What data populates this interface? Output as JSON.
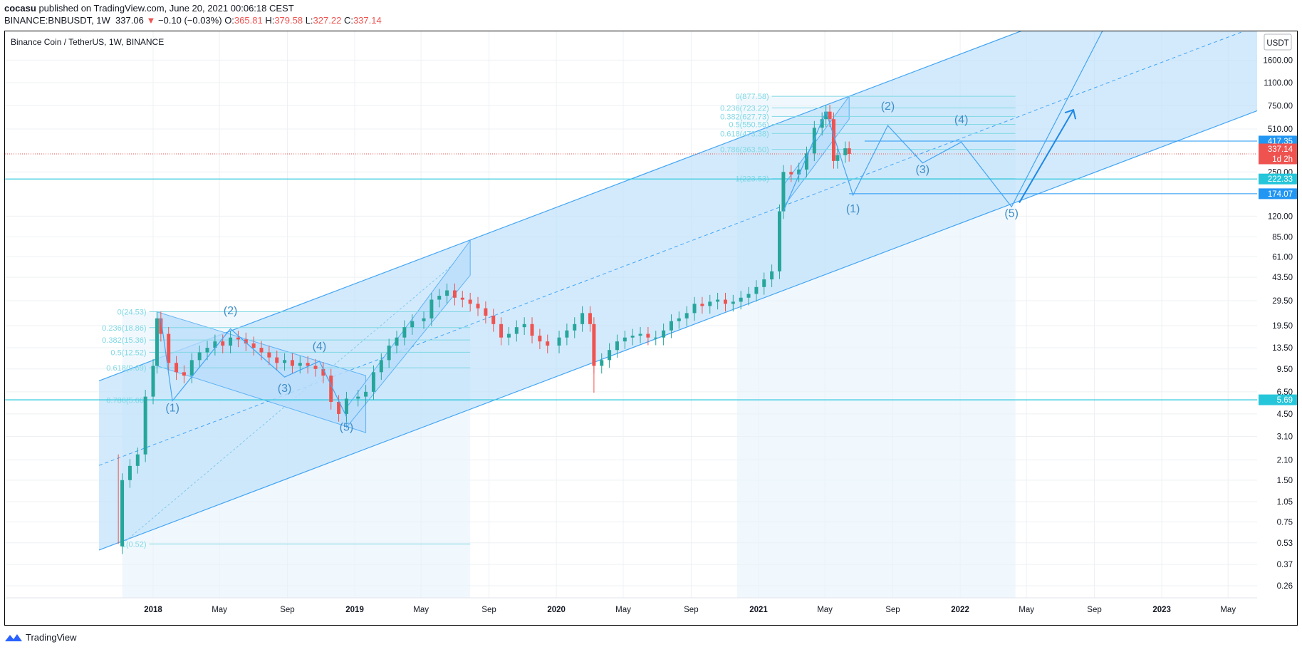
{
  "header": {
    "author": "cocasu",
    "published_text": "published on TradingView.com, June 20, 2021 00:06:18 CEST",
    "symbol": "BINANCE:BNBUSDT, 1W",
    "price": "337.06",
    "arrow": "▼",
    "change": "−0.10 (−0.03%)",
    "o_label": "O:",
    "o_value": "365.81",
    "h_label": "H:",
    "h_value": "379.58",
    "l_label": "L:",
    "l_value": "327.22",
    "c_label": "C:",
    "c_value": "337.14"
  },
  "chart_title": "Binance Coin / TetherUS, 1W, BINANCE",
  "footer": {
    "brand": "TradingView"
  },
  "colors": {
    "up": "#26a69a",
    "down": "#ef5350",
    "channel_fill": "#bbdefb",
    "channel_line": "#42a5f5",
    "fib": "#7fd8e4",
    "wave_label": "#3f8ec8",
    "hline": "#26c6da"
  },
  "chart_data": {
    "type": "candlestick",
    "title": "Binance Coin / TetherUS, 1W, BINANCE",
    "y_scale": "log",
    "y_unit": "USDT",
    "y_ticks": [
      0.26,
      0.37,
      0.53,
      0.75,
      1.05,
      1.5,
      2.1,
      3.1,
      4.5,
      6.5,
      9.5,
      13.5,
      19.5,
      29.5,
      43.5,
      61.0,
      85.0,
      120.0,
      250.0,
      510.0,
      750.0,
      1100.0,
      1600.0
    ],
    "y_tick_labels": [
      "0.26",
      "0.37",
      "0.53",
      "0.75",
      "1.05",
      "1.50",
      "2.10",
      "3.10",
      "4.50",
      "6.50",
      "9.50",
      "13.50",
      "19.50",
      "29.50",
      "43.50",
      "61.00",
      "85.00",
      "120.00",
      "250.00",
      "510.00",
      "750.00",
      "1100.00",
      "1600.00"
    ],
    "x_ticks": [
      {
        "label": "2018",
        "date": "2018-01-01",
        "bold": true
      },
      {
        "label": "May",
        "date": "2018-05-01"
      },
      {
        "label": "Sep",
        "date": "2018-09-01"
      },
      {
        "label": "2019",
        "date": "2019-01-01",
        "bold": true
      },
      {
        "label": "May",
        "date": "2019-05-01"
      },
      {
        "label": "Sep",
        "date": "2019-09-01"
      },
      {
        "label": "2020",
        "date": "2020-01-01",
        "bold": true
      },
      {
        "label": "May",
        "date": "2020-05-01"
      },
      {
        "label": "Sep",
        "date": "2020-09-01"
      },
      {
        "label": "2021",
        "date": "2021-01-01",
        "bold": true
      },
      {
        "label": "May",
        "date": "2021-05-01"
      },
      {
        "label": "Sep",
        "date": "2021-09-01"
      },
      {
        "label": "2022",
        "date": "2022-01-01",
        "bold": true
      },
      {
        "label": "May",
        "date": "2022-05-01"
      },
      {
        "label": "Sep",
        "date": "2022-09-01"
      },
      {
        "label": "2023",
        "date": "2023-01-01",
        "bold": true
      },
      {
        "label": "May",
        "date": "2023-05-01"
      }
    ],
    "price_points": [
      [
        "2017-10-30",
        0.5
      ],
      [
        "2017-11-06",
        1.5
      ],
      [
        "2017-11-20",
        1.9
      ],
      [
        "2017-12-04",
        2.3
      ],
      [
        "2017-12-18",
        6.0
      ],
      [
        "2018-01-01",
        10.0
      ],
      [
        "2018-01-08",
        22.0
      ],
      [
        "2018-01-15",
        17.0
      ],
      [
        "2018-01-29",
        10.5
      ],
      [
        "2018-02-12",
        9.0
      ],
      [
        "2018-02-26",
        8.5
      ],
      [
        "2018-03-12",
        11.0
      ],
      [
        "2018-03-26",
        12.5
      ],
      [
        "2018-04-09",
        13.5
      ],
      [
        "2018-04-23",
        15.0
      ],
      [
        "2018-05-07",
        14.0
      ],
      [
        "2018-05-21",
        16.0
      ],
      [
        "2018-06-04",
        15.5
      ],
      [
        "2018-06-18",
        14.5
      ],
      [
        "2018-07-02",
        13.5
      ],
      [
        "2018-07-16",
        12.5
      ],
      [
        "2018-07-30",
        11.5
      ],
      [
        "2018-08-13",
        10.5
      ],
      [
        "2018-08-27",
        11.0
      ],
      [
        "2018-09-10",
        10.0
      ],
      [
        "2018-09-24",
        10.5
      ],
      [
        "2018-10-08",
        10.0
      ],
      [
        "2018-10-22",
        9.5
      ],
      [
        "2018-11-05",
        8.5
      ],
      [
        "2018-11-19",
        5.5
      ],
      [
        "2018-12-03",
        4.5
      ],
      [
        "2018-12-17",
        5.8
      ],
      [
        "2019-01-07",
        6.0
      ],
      [
        "2019-01-21",
        6.5
      ],
      [
        "2019-02-04",
        9.0
      ],
      [
        "2019-02-18",
        11.0
      ],
      [
        "2019-03-04",
        14.0
      ],
      [
        "2019-03-18",
        16.0
      ],
      [
        "2019-04-01",
        19.0
      ],
      [
        "2019-04-15",
        21.0
      ],
      [
        "2019-05-06",
        22.0
      ],
      [
        "2019-05-20",
        30.0
      ],
      [
        "2019-06-03",
        32.0
      ],
      [
        "2019-06-17",
        35.0
      ],
      [
        "2019-07-01",
        31.0
      ],
      [
        "2019-07-15",
        30.0
      ],
      [
        "2019-07-29",
        28.0
      ],
      [
        "2019-08-12",
        26.0
      ],
      [
        "2019-08-26",
        23.0
      ],
      [
        "2019-09-09",
        20.0
      ],
      [
        "2019-09-23",
        16.0
      ],
      [
        "2019-10-07",
        17.0
      ],
      [
        "2019-10-21",
        19.0
      ],
      [
        "2019-11-04",
        20.0
      ],
      [
        "2019-11-18",
        16.5
      ],
      [
        "2019-12-02",
        15.0
      ],
      [
        "2019-12-16",
        14.0
      ],
      [
        "2020-01-06",
        16.0
      ],
      [
        "2020-01-20",
        18.0
      ],
      [
        "2020-02-03",
        20.0
      ],
      [
        "2020-02-17",
        24.0
      ],
      [
        "2020-03-02",
        20.0
      ],
      [
        "2020-03-09",
        10.0
      ],
      [
        "2020-03-23",
        11.0
      ],
      [
        "2020-04-06",
        13.0
      ],
      [
        "2020-04-20",
        15.0
      ],
      [
        "2020-05-04",
        16.0
      ],
      [
        "2020-05-18",
        16.5
      ],
      [
        "2020-06-01",
        17.0
      ],
      [
        "2020-06-15",
        16.0
      ],
      [
        "2020-06-29",
        16.0
      ],
      [
        "2020-07-13",
        18.0
      ],
      [
        "2020-07-27",
        21.0
      ],
      [
        "2020-08-10",
        22.0
      ],
      [
        "2020-08-24",
        24.0
      ],
      [
        "2020-09-07",
        28.0
      ],
      [
        "2020-09-21",
        27.0
      ],
      [
        "2020-10-05",
        29.0
      ],
      [
        "2020-10-19",
        30.0
      ],
      [
        "2020-11-02",
        28.0
      ],
      [
        "2020-11-16",
        29.0
      ],
      [
        "2020-11-30",
        31.0
      ],
      [
        "2020-12-14",
        33.0
      ],
      [
        "2020-12-28",
        37.0
      ],
      [
        "2021-01-11",
        42.0
      ],
      [
        "2021-01-25",
        48.0
      ],
      [
        "2021-02-08",
        130.0
      ],
      [
        "2021-02-15",
        250.0
      ],
      [
        "2021-03-01",
        240.0
      ],
      [
        "2021-03-15",
        260.0
      ],
      [
        "2021-03-29",
        340.0
      ],
      [
        "2021-04-12",
        520.0
      ],
      [
        "2021-04-26",
        600.0
      ],
      [
        "2021-05-03",
        680.0
      ],
      [
        "2021-05-10",
        600.0
      ],
      [
        "2021-05-17",
        300.0
      ],
      [
        "2021-05-24",
        330.0
      ],
      [
        "2021-06-07",
        370.0
      ],
      [
        "2021-06-14",
        337.14
      ]
    ],
    "fib_levels": [
      {
        "label": "0(877.58)",
        "price": 877.58
      },
      {
        "label": "0.236(723.22)",
        "price": 723.22
      },
      {
        "label": "0.382(627.73)",
        "price": 627.73
      },
      {
        "label": "0.5(550.56)",
        "price": 550.56
      },
      {
        "label": "0.618(473.38)",
        "price": 473.38
      },
      {
        "label": "0.786(363.50)",
        "price": 363.5
      },
      {
        "label": "1(223.53)",
        "price": 223.53
      }
    ],
    "fib_levels_2018": [
      {
        "label": "0(24.53)",
        "price": 24.53
      },
      {
        "label": "0.236(18.86)",
        "price": 18.86
      },
      {
        "label": "0.382(15.36)",
        "price": 15.36
      },
      {
        "label": "0.5(12.52)",
        "price": 12.52
      },
      {
        "label": "0.618(9.69)",
        "price": 9.69
      },
      {
        "label": "0.786(5.66)",
        "price": 5.66
      },
      {
        "label": "1(0.52)",
        "price": 0.52
      }
    ],
    "price_tags": [
      {
        "label": "417.35",
        "price": 417.35
      },
      {
        "label": "337.14",
        "price": 337.14,
        "style": "current"
      },
      {
        "label": "1d 2h",
        "price": 337.14,
        "style": "countdown"
      },
      {
        "label": "222.33",
        "price": 222.33
      },
      {
        "label": "174.07",
        "price": 174.07
      },
      {
        "label": "5.69",
        "price": 5.69
      }
    ],
    "wave_labels_2018": [
      {
        "label": "(1)",
        "date": "2018-02-05",
        "price": 4.7
      },
      {
        "label": "(2)",
        "date": "2018-05-21",
        "price": 23.5
      },
      {
        "label": "(3)",
        "date": "2018-08-27",
        "price": 6.5
      },
      {
        "label": "(4)",
        "date": "2018-10-29",
        "price": 13.0
      },
      {
        "label": "(5)",
        "date": "2018-12-17",
        "price": 3.4
      }
    ],
    "wave_labels_projection": [
      {
        "label": "(1)",
        "date": "2021-06-21",
        "price": 128.0
      },
      {
        "label": "(2)",
        "date": "2021-08-23",
        "price": 700.0
      },
      {
        "label": "(3)",
        "date": "2021-10-25",
        "price": 245.0
      },
      {
        "label": "(4)",
        "date": "2022-01-03",
        "price": 560.0
      },
      {
        "label": "(5)",
        "date": "2022-04-04",
        "price": 118.0
      }
    ],
    "y_axis_unit_label": "USDT"
  }
}
